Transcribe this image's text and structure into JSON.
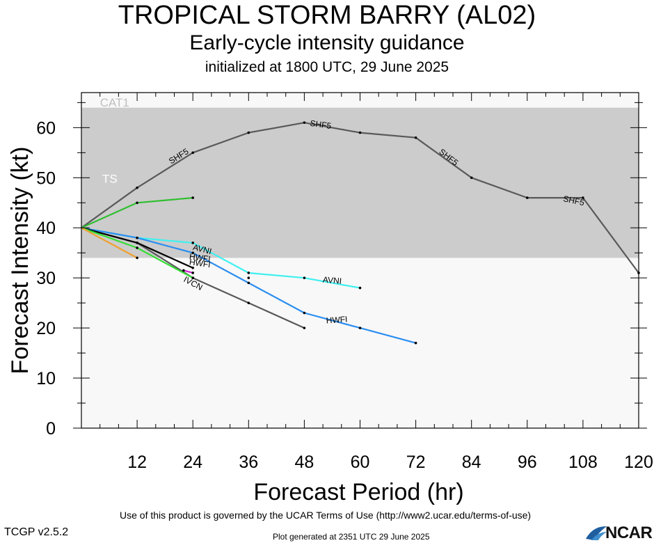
{
  "header": {
    "title": "TROPICAL STORM BARRY (AL02)",
    "subtitle": "Early-cycle intensity guidance",
    "initialized": "initialized at 1800 UTC, 29 June 2025"
  },
  "footer": {
    "terms": "Use of this product is governed by the UCAR Terms of Use (http://www2.ucar.edu/terms-of-use)",
    "version": "TCGP v2.5.2",
    "generated": "Plot generated at 2351 UTC   29 June 2025",
    "logo_text": "NCAR"
  },
  "chart_data": {
    "type": "line",
    "title": "TROPICAL STORM BARRY (AL02)",
    "xlabel": "Forecast Period (hr)",
    "ylabel": "Forecast Intensity (kt)",
    "xlim": [
      0,
      120
    ],
    "ylim": [
      0,
      67
    ],
    "xticks": [
      12,
      24,
      36,
      48,
      60,
      72,
      84,
      96,
      108,
      120
    ],
    "yticks": [
      0,
      10,
      20,
      30,
      40,
      50,
      60
    ],
    "bands": [
      {
        "label": "TS",
        "from": 34,
        "to": 64,
        "color": "#cccccc"
      },
      {
        "label": "CAT1",
        "from": 64,
        "to": 67,
        "color": "#f8f8f8"
      }
    ],
    "below_band_color": "#f8f8f8",
    "series": [
      {
        "name": "SHF5",
        "color": "#595959",
        "x": [
          0,
          12,
          24,
          36,
          48,
          60,
          72,
          84,
          96,
          108,
          120
        ],
        "y": [
          40,
          48,
          55,
          59,
          61,
          59,
          58,
          50,
          46,
          46,
          31
        ]
      },
      {
        "color": "#2fbf2f",
        "x": [
          0,
          12,
          24
        ],
        "y": [
          40,
          45,
          46
        ]
      },
      {
        "name": "AVNI",
        "color": "#3ff0f0",
        "x": [
          0,
          12,
          24,
          36,
          48,
          60
        ],
        "y": [
          40,
          38,
          37,
          31,
          30,
          28
        ]
      },
      {
        "name": "HWFI",
        "color": "#2b8ef0",
        "x": [
          0,
          12,
          24,
          36,
          48,
          60,
          72
        ],
        "y": [
          40,
          38,
          35,
          29,
          23,
          20,
          17
        ]
      },
      {
        "color": "#595959",
        "x": [
          0,
          12,
          24,
          36,
          48
        ],
        "y": [
          40,
          37,
          30,
          25,
          20
        ]
      },
      {
        "color": "#000000",
        "x": [
          0,
          12,
          24
        ],
        "y": [
          40,
          37,
          32
        ]
      },
      {
        "color": "#33dd33",
        "x": [
          0,
          12,
          24
        ],
        "y": [
          40,
          36,
          30
        ]
      },
      {
        "name": "IVCN",
        "color": "#d020d0",
        "x": [
          22,
          24
        ],
        "y": [
          31.5,
          31
        ]
      },
      {
        "color": "#f0a030",
        "x": [
          0,
          12
        ],
        "y": [
          40,
          34
        ]
      },
      {
        "color": "#595959",
        "x": [
          36
        ],
        "y": [
          30
        ]
      }
    ],
    "labels": [
      {
        "text": "SHF5",
        "x": 21,
        "y": 54.2,
        "angle": -32
      },
      {
        "text": "SHF5",
        "x": 51.5,
        "y": 60.5,
        "angle": 8
      },
      {
        "text": "SHF5",
        "x": 79,
        "y": 54,
        "angle": 38
      },
      {
        "text": "SHF5",
        "x": 106,
        "y": 45.3,
        "angle": 12
      },
      {
        "text": "AVNI",
        "x": 26,
        "y": 35.6,
        "angle": 14
      },
      {
        "text": "AVNI",
        "x": 54,
        "y": 29.4,
        "angle": 5
      },
      {
        "text": "HWFI",
        "x": 25.5,
        "y": 33.9,
        "angle": 8
      },
      {
        "text": "HWFI",
        "x": 25.5,
        "y": 32.8,
        "angle": 8
      },
      {
        "text": "HWFI",
        "x": 55,
        "y": 21.5,
        "angle": -4
      },
      {
        "text": "IVCN",
        "x": 24,
        "y": 28.8,
        "angle": 28
      }
    ]
  }
}
